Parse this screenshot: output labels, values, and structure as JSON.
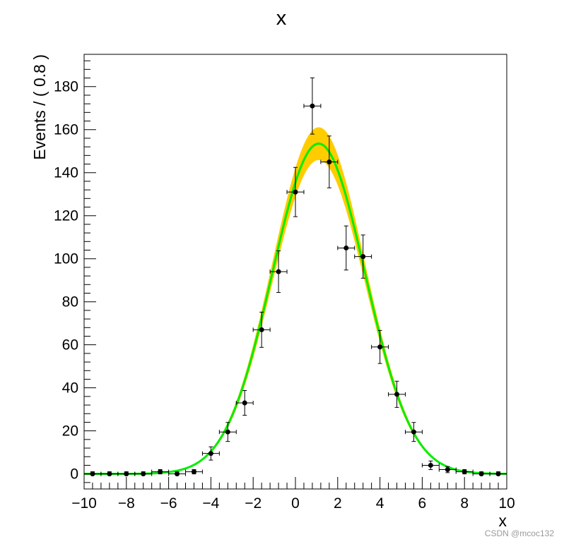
{
  "chart_data": {
    "type": "scatter",
    "title": "x",
    "xlabel": "x",
    "ylabel": "Events / ( 0.8 )",
    "xlim": [
      -10,
      10
    ],
    "ylim": [
      -7,
      195
    ],
    "x_ticks": [
      -10,
      -8,
      -6,
      -4,
      -2,
      0,
      2,
      4,
      6,
      8,
      10
    ],
    "y_ticks": [
      0,
      20,
      40,
      60,
      80,
      100,
      120,
      140,
      160,
      180
    ],
    "bin_half_width": 0.4,
    "series": [
      {
        "type": "points_with_errors",
        "x": [
          -9.6,
          -8.8,
          -8.0,
          -7.2,
          -6.4,
          -5.6,
          -4.8,
          -4.0,
          -3.2,
          -2.4,
          -1.6,
          -0.8,
          0.0,
          0.8,
          1.6,
          2.4,
          3.2,
          4.0,
          4.8,
          5.6,
          6.4,
          7.2,
          8.0,
          8.8,
          9.6
        ],
        "y": [
          0,
          0,
          0,
          0,
          1,
          0,
          1,
          9.5,
          19.5,
          33,
          67,
          94,
          131,
          171,
          145,
          105,
          101,
          59,
          37,
          19.5,
          4,
          2,
          1,
          0,
          0
        ]
      },
      {
        "type": "curve",
        "model": "gaussian",
        "peak": 153.5,
        "mean": 1.1,
        "sigma": 2.2,
        "color": "#00ee00"
      },
      {
        "type": "error_band",
        "peak_low": 146.5,
        "peak_high": 160.5,
        "mean": 1.1,
        "sigma": 2.2,
        "color": "#ffcc00"
      }
    ]
  },
  "watermark": "CSDN @mcoc132"
}
